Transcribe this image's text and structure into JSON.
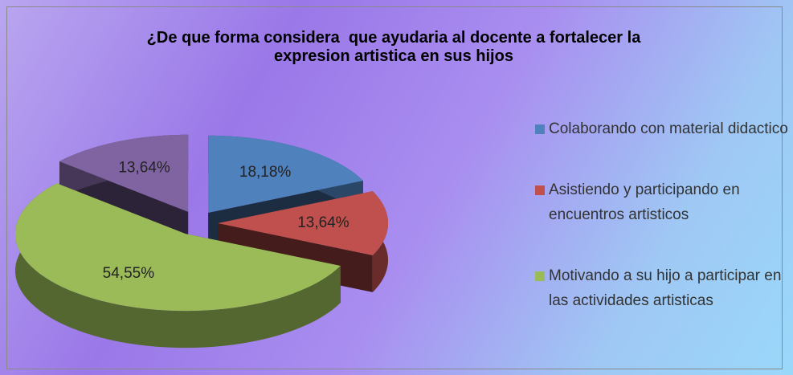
{
  "chart_data": {
    "type": "pie",
    "title": "¿De que forma considera  que ayudaria al docente a fortalecer la expresion artistica en sus hijos",
    "categories": [
      "Colaborando con material didactico",
      "Asistiendo y participando en encuentros artisticos",
      "Motivando a su hijo a participar en las actividades artisticas",
      null
    ],
    "values": [
      18.18,
      13.64,
      54.55,
      13.64
    ],
    "value_labels": [
      "18,18%",
      "13,64%",
      "54,55%",
      "13,64%"
    ],
    "colors": [
      "#4f81bd",
      "#c0504d",
      "#9bbb59",
      "#8064a2"
    ],
    "legend": "right"
  }
}
